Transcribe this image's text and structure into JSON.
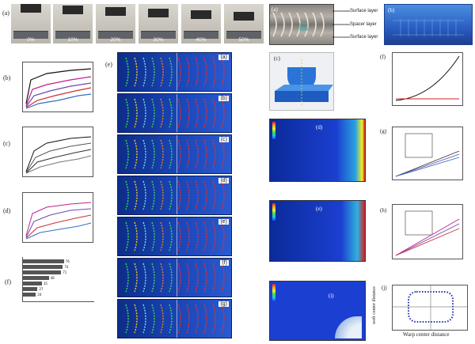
{
  "left": {
    "photos_label": "(a)",
    "photos": [
      "0%",
      "10%",
      "20%",
      "30%",
      "40%",
      "50%"
    ],
    "plot_b_label": "(b)",
    "plot_c_label": "(c)",
    "plot_d_label": "(d)",
    "plot_e_label": "(e)",
    "plot_f_label": "(f)",
    "bar_values": [
      "76",
      "74",
      "71",
      "48",
      "35",
      "27",
      "24"
    ]
  },
  "fem": {
    "panel_tags": [
      "(a)",
      "(b)",
      "(c)",
      "(d)",
      "(e)",
      "(f)",
      "(g)"
    ]
  },
  "right": {
    "panel_a_tag": "(a)",
    "panel_b_tag": "(b)",
    "layer_labels": [
      "Surface layer",
      "Spacer layer",
      "Surface layer"
    ],
    "panel_c_tag": "(c)",
    "panel_d_tag": "(d)",
    "panel_e_tag": "(e)",
    "panel_i_tag": "(i)",
    "panel_f_tag": "(f)",
    "panel_g_tag": "(g)",
    "panel_h_tag": "(h)",
    "panel_j_tag": "(j)",
    "j_xlabel": "Warp center distance",
    "j_ylabel": "weft center distance"
  },
  "colors": {
    "fem_blue": "#1a46b8",
    "contour_blue": "#1b3fd0",
    "accent_red": "#d02020"
  }
}
